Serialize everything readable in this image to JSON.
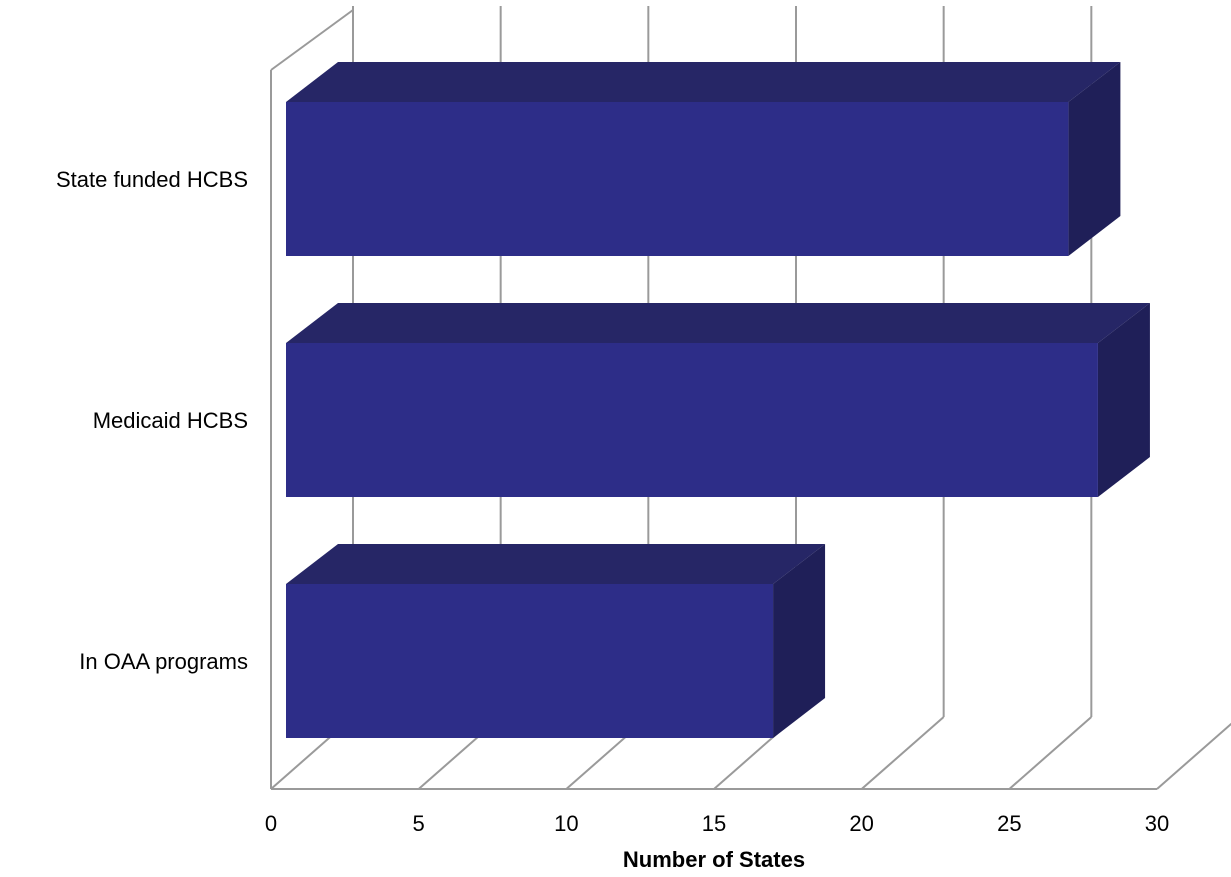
{
  "chart_data": {
    "type": "bar",
    "orientation": "horizontal",
    "style": "3d",
    "categories": [
      "State funded HCBS",
      "Medicaid HCBS",
      "In OAA programs"
    ],
    "values": [
      27,
      28,
      17
    ],
    "title": "",
    "xlabel": "Number of States",
    "ylabel": "",
    "xlim": [
      0,
      30
    ],
    "x_ticks": [
      "0",
      "5",
      "10",
      "15",
      "20",
      "25",
      "30"
    ],
    "grid": true,
    "colors": {
      "bar_front": "#2d2d88",
      "bar_top": "#262666",
      "bar_side": "#1f1f58",
      "grid": "#9a9a9a"
    }
  }
}
